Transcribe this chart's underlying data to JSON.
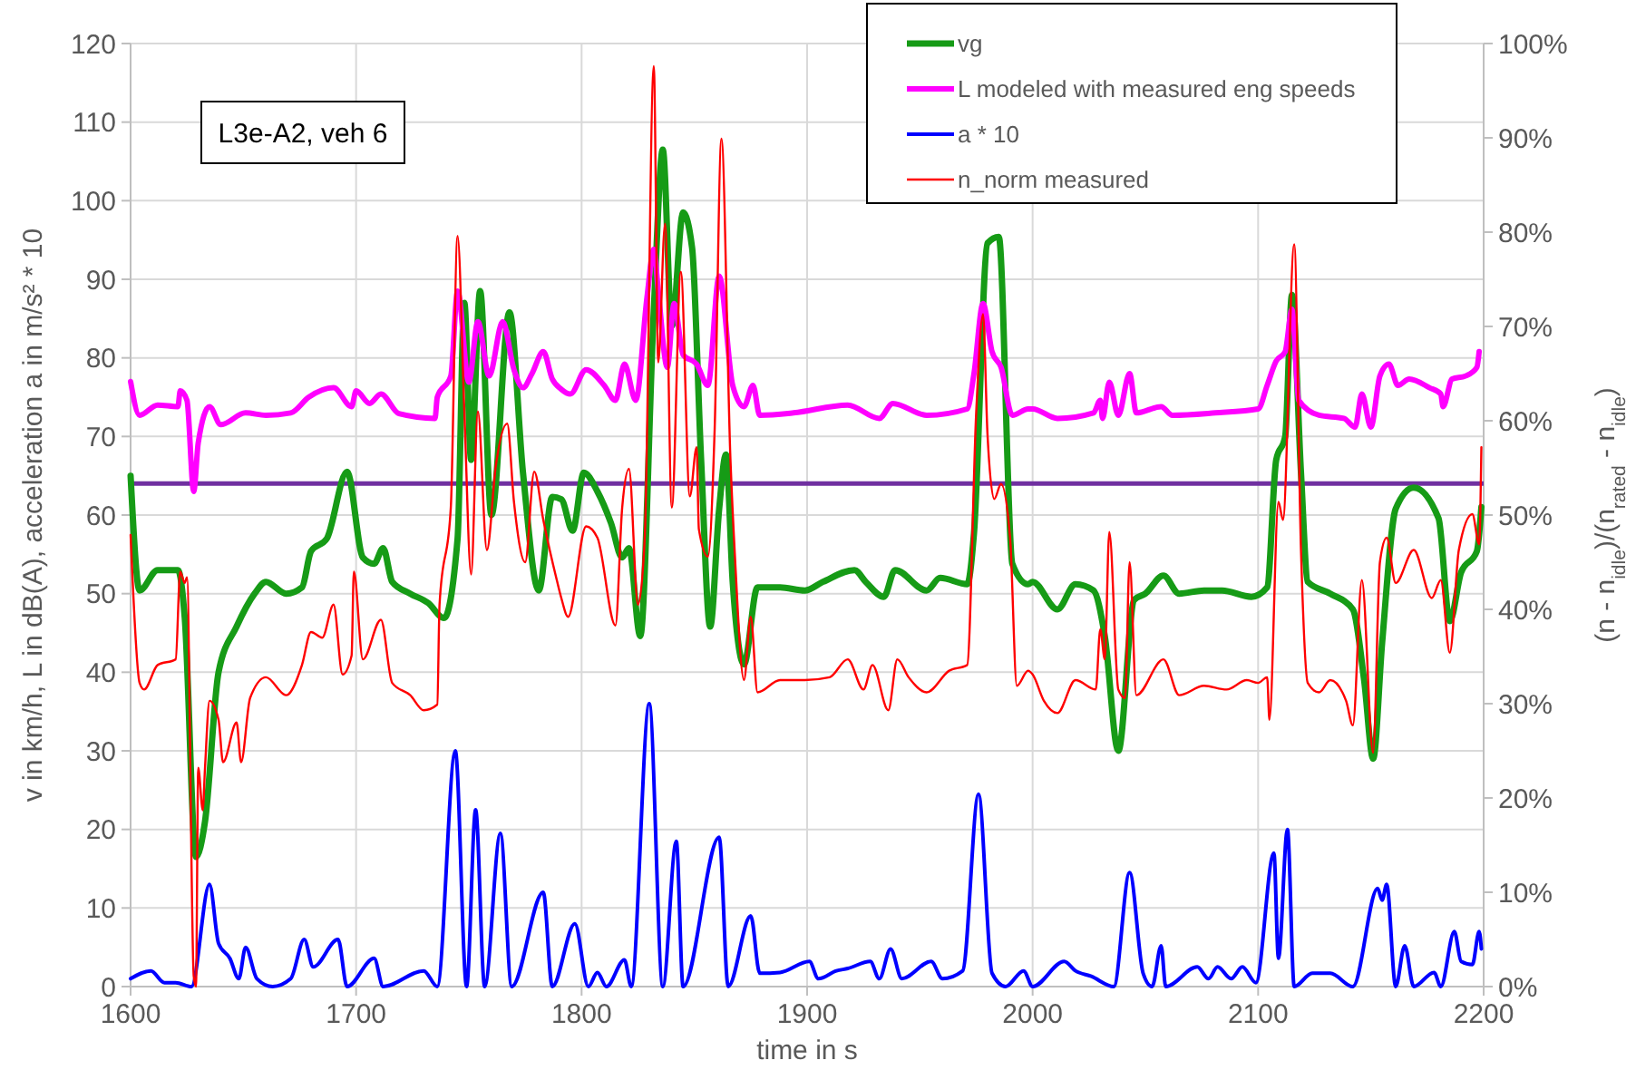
{
  "chart_data": {
    "type": "line",
    "xlabel": "time in s",
    "ylabel": "v in km/h, L in dB(A), acceleration a in m/s² * 10",
    "y2label": "(n - n$_{idle}$)/(n$_{rated}$ - n$_{idle}$)",
    "annotations": [
      "L3e-A2, veh 6"
    ],
    "xlim": [
      1600,
      2200
    ],
    "xticks": [
      1600,
      1700,
      1800,
      1900,
      2000,
      2100,
      2200
    ],
    "ylim": [
      0,
      120
    ],
    "yticks": [
      0,
      10,
      20,
      30,
      40,
      50,
      60,
      70,
      80,
      90,
      100,
      110,
      120
    ],
    "y2lim": [
      0,
      100
    ],
    "y2ticks": [
      {
        "value": 0,
        "label": "0%"
      },
      {
        "value": 10,
        "label": "10%"
      },
      {
        "value": 20,
        "label": "20%"
      },
      {
        "value": 30,
        "label": "30%"
      },
      {
        "value": 40,
        "label": "40%"
      },
      {
        "value": 50,
        "label": "50%"
      },
      {
        "value": 60,
        "label": "60%"
      },
      {
        "value": 70,
        "label": "70%"
      },
      {
        "value": 80,
        "label": "80%"
      },
      {
        "value": 90,
        "label": "90%"
      },
      {
        "value": 100,
        "label": "100%"
      }
    ],
    "grid": true,
    "legend": "top right",
    "ref_lines": [
      {
        "axis": "y",
        "value": 64,
        "color": "#7030a0"
      }
    ],
    "series": [
      {
        "name": "vg",
        "color": "#169b16",
        "x": [
          1600,
          1604,
          1612,
          1621,
          1624,
          1629,
          1633,
          1639,
          1647,
          1655,
          1660,
          1669,
          1676,
          1680,
          1687,
          1696,
          1703,
          1708,
          1712,
          1716,
          1724,
          1732,
          1739,
          1745,
          1748,
          1751,
          1755,
          1760,
          1768,
          1774,
          1781,
          1787,
          1791,
          1796,
          1801,
          1807,
          1813,
          1818,
          1821,
          1826,
          1832,
          1836,
          1840,
          1845,
          1849,
          1853,
          1857,
          1861,
          1864,
          1867,
          1872,
          1878,
          1888,
          1899,
          1907,
          1921,
          1926,
          1934,
          1939,
          1953,
          1959,
          1971,
          1974,
          1980,
          1985,
          1991,
          1998,
          2000,
          2011,
          2019,
          2027,
          2032,
          2038,
          2045,
          2050,
          2058,
          2065,
          2076,
          2084,
          2097,
          2104,
          2108,
          2112,
          2115,
          2119,
          2122,
          2132,
          2142,
          2147,
          2151,
          2155,
          2161,
          2169,
          2180,
          2185,
          2190,
          2197,
          2199
        ],
        "values": [
          65,
          50.4,
          53,
          53,
          47,
          16.5,
          21,
          40,
          45.8,
          50,
          51.5,
          50,
          50.8,
          55.4,
          57,
          65.5,
          54.6,
          53.8,
          55.8,
          51.5,
          50,
          48.8,
          46.9,
          57,
          87,
          67,
          88.5,
          60,
          85.8,
          65.4,
          50.4,
          62.3,
          62,
          58,
          65.4,
          63,
          59,
          54.6,
          55.8,
          44.6,
          86,
          106.5,
          84,
          98.5,
          94,
          67,
          45.8,
          60.8,
          67.7,
          51.5,
          41,
          50.8,
          50.8,
          50.4,
          51.5,
          53,
          51.5,
          49.6,
          53,
          50.4,
          52,
          51.2,
          57.7,
          94.6,
          95.4,
          53.8,
          51.2,
          51.5,
          48,
          51.2,
          50.4,
          44.6,
          30,
          49.2,
          50,
          52.3,
          50,
          50.4,
          50.4,
          49.6,
          50.8,
          67,
          70,
          88,
          65.4,
          51.5,
          50,
          48,
          39,
          29,
          43.8,
          60.8,
          63.5,
          59.6,
          46.5,
          52.7,
          55.4,
          61
        ]
      },
      {
        "name": "L modeled with measured eng speeds",
        "color": "#ff00ff",
        "x": [
          1600,
          1604,
          1612,
          1621,
          1622,
          1625,
          1628,
          1630,
          1635,
          1640,
          1651,
          1660,
          1671,
          1679,
          1690,
          1698,
          1700,
          1706,
          1711,
          1719,
          1735,
          1736,
          1742,
          1745,
          1750,
          1754,
          1759,
          1765,
          1770,
          1774,
          1778,
          1783,
          1787,
          1791,
          1795,
          1802,
          1810,
          1815,
          1819,
          1824,
          1829,
          1832,
          1834,
          1838,
          1841,
          1845,
          1851,
          1856,
          1861,
          1867,
          1872,
          1876,
          1879,
          1894,
          1918,
          1932,
          1938,
          1953,
          1971,
          1974,
          1978,
          1982,
          1986,
          1991,
          1998,
          2000,
          2011,
          2027,
          2030,
          2031,
          2034,
          2038,
          2043,
          2046,
          2057,
          2062,
          2081,
          2100,
          2104,
          2108,
          2112,
          2115,
          2118,
          2127,
          2138,
          2143,
          2146,
          2150,
          2154,
          2158,
          2162,
          2167,
          2176,
          2181,
          2182,
          2186,
          2192,
          2197,
          2198
        ],
        "values": [
          77,
          72.7,
          74,
          73.8,
          75.8,
          74.6,
          63,
          69.2,
          73.8,
          71.5,
          73,
          72.7,
          73,
          75,
          76.2,
          73.8,
          75.8,
          74.2,
          75.4,
          72.9,
          72.3,
          75,
          77.7,
          88.5,
          76.9,
          84.6,
          77.7,
          84.6,
          78.5,
          76.2,
          78,
          80.8,
          77.3,
          76,
          75.4,
          78.5,
          76.5,
          74.6,
          79.2,
          74.6,
          87.7,
          93.8,
          88.5,
          78.8,
          86.9,
          80.4,
          79.2,
          76.5,
          90.4,
          76.5,
          73.8,
          76.5,
          72.7,
          73,
          74,
          72.3,
          74.2,
          72.7,
          73.5,
          78,
          86.9,
          80.8,
          78.8,
          72.7,
          73.5,
          73.5,
          72.3,
          73,
          74.6,
          72.3,
          76.9,
          72.7,
          78,
          73,
          73.8,
          72.7,
          73,
          73.5,
          76.5,
          79.6,
          80.8,
          86.2,
          74.6,
          72.7,
          72.3,
          71.2,
          75.4,
          71.2,
          77.7,
          79.2,
          76.5,
          77.3,
          76.2,
          75.4,
          73.8,
          77.3,
          77.7,
          78.8,
          80.8
        ]
      },
      {
        "name": "a * 10",
        "color": "#0000ff",
        "x": [
          1600,
          1609,
          1615,
          1620,
          1627,
          1635,
          1639,
          1644,
          1648,
          1651,
          1656,
          1663,
          1671,
          1677,
          1681,
          1692,
          1696,
          1708,
          1712,
          1730,
          1736,
          1744,
          1749,
          1753,
          1757,
          1764,
          1769,
          1783,
          1787,
          1797,
          1803,
          1807,
          1811,
          1819,
          1822,
          1830,
          1836,
          1842,
          1845,
          1861,
          1865,
          1875,
          1879,
          1888,
          1901,
          1905,
          1913,
          1918,
          1928,
          1932,
          1937,
          1942,
          1955,
          1960,
          1969,
          1976,
          1982,
          1988,
          1996,
          2000,
          2014,
          2019,
          2026,
          2036,
          2043,
          2049,
          2053,
          2057,
          2059,
          2073,
          2078,
          2082,
          2088,
          2093,
          2099,
          2107,
          2109,
          2113,
          2116,
          2124,
          2132,
          2142,
          2153,
          2155,
          2157,
          2161,
          2165,
          2169,
          2178,
          2181,
          2187,
          2190,
          2195,
          2198,
          2199
        ],
        "values": [
          1,
          2,
          0.5,
          0.5,
          0,
          13,
          5.5,
          3.6,
          1,
          5,
          1,
          0,
          1,
          6,
          2.5,
          6,
          0,
          3.6,
          0,
          2,
          0,
          30,
          0,
          22.5,
          0,
          19.5,
          0,
          12,
          0,
          8,
          0,
          1.8,
          0,
          3.4,
          0,
          36,
          0,
          18.5,
          0,
          19,
          0,
          9,
          1.7,
          1.8,
          3.2,
          1,
          2,
          2.3,
          3.2,
          1,
          4.8,
          1,
          3.2,
          1,
          2,
          24.5,
          1.7,
          0,
          2,
          0,
          3.2,
          2,
          1.3,
          0,
          14.5,
          1.7,
          0,
          5.2,
          0,
          2.5,
          1,
          2.5,
          1,
          2.5,
          0.5,
          17,
          3.6,
          20,
          0,
          1.7,
          1.7,
          0,
          12.5,
          11,
          13,
          0,
          5.2,
          0,
          1.8,
          0,
          7,
          3.2,
          2.8,
          7,
          4.8
        ]
      },
      {
        "name": "n_norm measured",
        "color": "#ff0000",
        "axis": "y2",
        "x": [
          1600,
          1604,
          1606,
          1612,
          1620,
          1622,
          1624,
          1625,
          1628,
          1629,
          1630,
          1632,
          1633,
          1635,
          1639,
          1641,
          1647,
          1649,
          1653,
          1660,
          1669,
          1676,
          1680,
          1685,
          1690,
          1694,
          1698,
          1699,
          1703,
          1711,
          1716,
          1724,
          1730,
          1736,
          1737,
          1742,
          1745,
          1748,
          1751,
          1754,
          1758,
          1762,
          1767,
          1770,
          1775,
          1779,
          1783,
          1789,
          1791,
          1794,
          1802,
          1807,
          1815,
          1818,
          1821,
          1825,
          1828,
          1832,
          1834,
          1837,
          1840,
          1844,
          1848,
          1851,
          1852,
          1856,
          1859,
          1862,
          1866,
          1868,
          1872,
          1875,
          1878,
          1888,
          1899,
          1910,
          1918,
          1925,
          1929,
          1936,
          1940,
          1945,
          1953,
          1963,
          1971,
          1975,
          1978,
          1980,
          1983,
          1986,
          1990,
          1993,
          1998,
          2000,
          2005,
          2011,
          2019,
          2028,
          2030,
          2032,
          2034,
          2038,
          2041,
          2043,
          2046,
          2058,
          2065,
          2076,
          2086,
          2095,
          2100,
          2104,
          2105,
          2109,
          2111,
          2116,
          2119,
          2122,
          2127,
          2132,
          2139,
          2142,
          2146,
          2151,
          2154,
          2157,
          2161,
          2169,
          2177,
          2181,
          2185,
          2189,
          2195,
          2198,
          2199
        ],
        "values": [
          47.9,
          32.2,
          31.5,
          34.1,
          34.7,
          44,
          42.8,
          43.4,
          1.1,
          0,
          23.2,
          18.7,
          23.2,
          30.3,
          28.3,
          23.8,
          28,
          23.8,
          30.6,
          32.8,
          30.9,
          34.1,
          37.6,
          37,
          40.5,
          33.1,
          35.1,
          44,
          34.7,
          38.9,
          32.2,
          30.9,
          29.3,
          29.9,
          40.5,
          50.8,
          79.6,
          61,
          43.7,
          61,
          46.3,
          55.3,
          59.7,
          51.4,
          45,
          54.6,
          49.5,
          43.1,
          41.2,
          39.2,
          48.8,
          47.6,
          38.3,
          50.8,
          54.9,
          40.5,
          47.6,
          97.6,
          66.2,
          80.9,
          50.8,
          75.8,
          52,
          57.2,
          48.5,
          45.6,
          59.1,
          89.9,
          55.9,
          45.6,
          32.5,
          39.2,
          31.2,
          32.5,
          32.5,
          32.8,
          34.7,
          31.5,
          34.1,
          29.3,
          34.7,
          32.8,
          31.2,
          33.5,
          34.1,
          61,
          71.3,
          58.5,
          51.7,
          53.3,
          47.6,
          31.9,
          33.5,
          33.1,
          30.3,
          29,
          32.5,
          31.5,
          37.9,
          34.7,
          48.2,
          31.5,
          30.6,
          45,
          30.9,
          34.7,
          30.9,
          31.9,
          31.5,
          32.5,
          32.2,
          32.8,
          28.3,
          51.4,
          49.5,
          78.7,
          46.3,
          32.2,
          31.2,
          32.5,
          30.3,
          27.7,
          43.1,
          24.8,
          45,
          47.6,
          42.8,
          46.3,
          41.2,
          43.1,
          35.4,
          46.3,
          50.1,
          46.9,
          57.2
        ]
      }
    ]
  }
}
